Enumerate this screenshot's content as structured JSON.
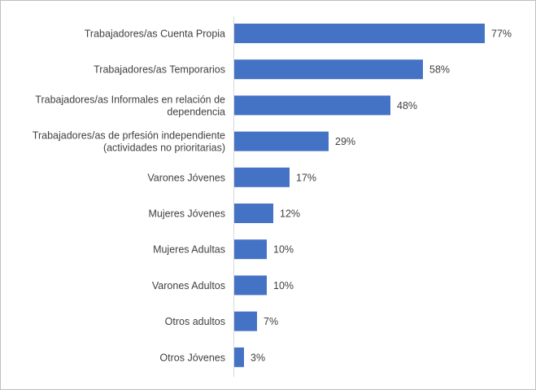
{
  "chart_data": {
    "type": "bar",
    "orientation": "horizontal",
    "categories": [
      [
        "Trabajadores/as Cuenta Propia"
      ],
      [
        "Trabajadores/as Temporarios"
      ],
      [
        "Trabajadores/as Informales en relación de",
        "dependencia"
      ],
      [
        "Trabajadores/as de prfesión independiente",
        "(actividades no prioritarias)"
      ],
      [
        "Varones Jóvenes"
      ],
      [
        "Mujeres Jóvenes"
      ],
      [
        "Mujeres Adultas"
      ],
      [
        "Varones Adultos"
      ],
      [
        "Otros adultos"
      ],
      [
        "Otros Jóvenes"
      ]
    ],
    "values": [
      77,
      58,
      48,
      29,
      17,
      12,
      10,
      10,
      7,
      3
    ],
    "value_labels": [
      "77%",
      "58%",
      "48%",
      "29%",
      "17%",
      "12%",
      "10%",
      "10%",
      "7%",
      "3%"
    ],
    "xlim": [
      0,
      80
    ],
    "bar_color": "#4472c4",
    "axis_color": "#d9d9d9",
    "grid": false,
    "legend": "none"
  }
}
